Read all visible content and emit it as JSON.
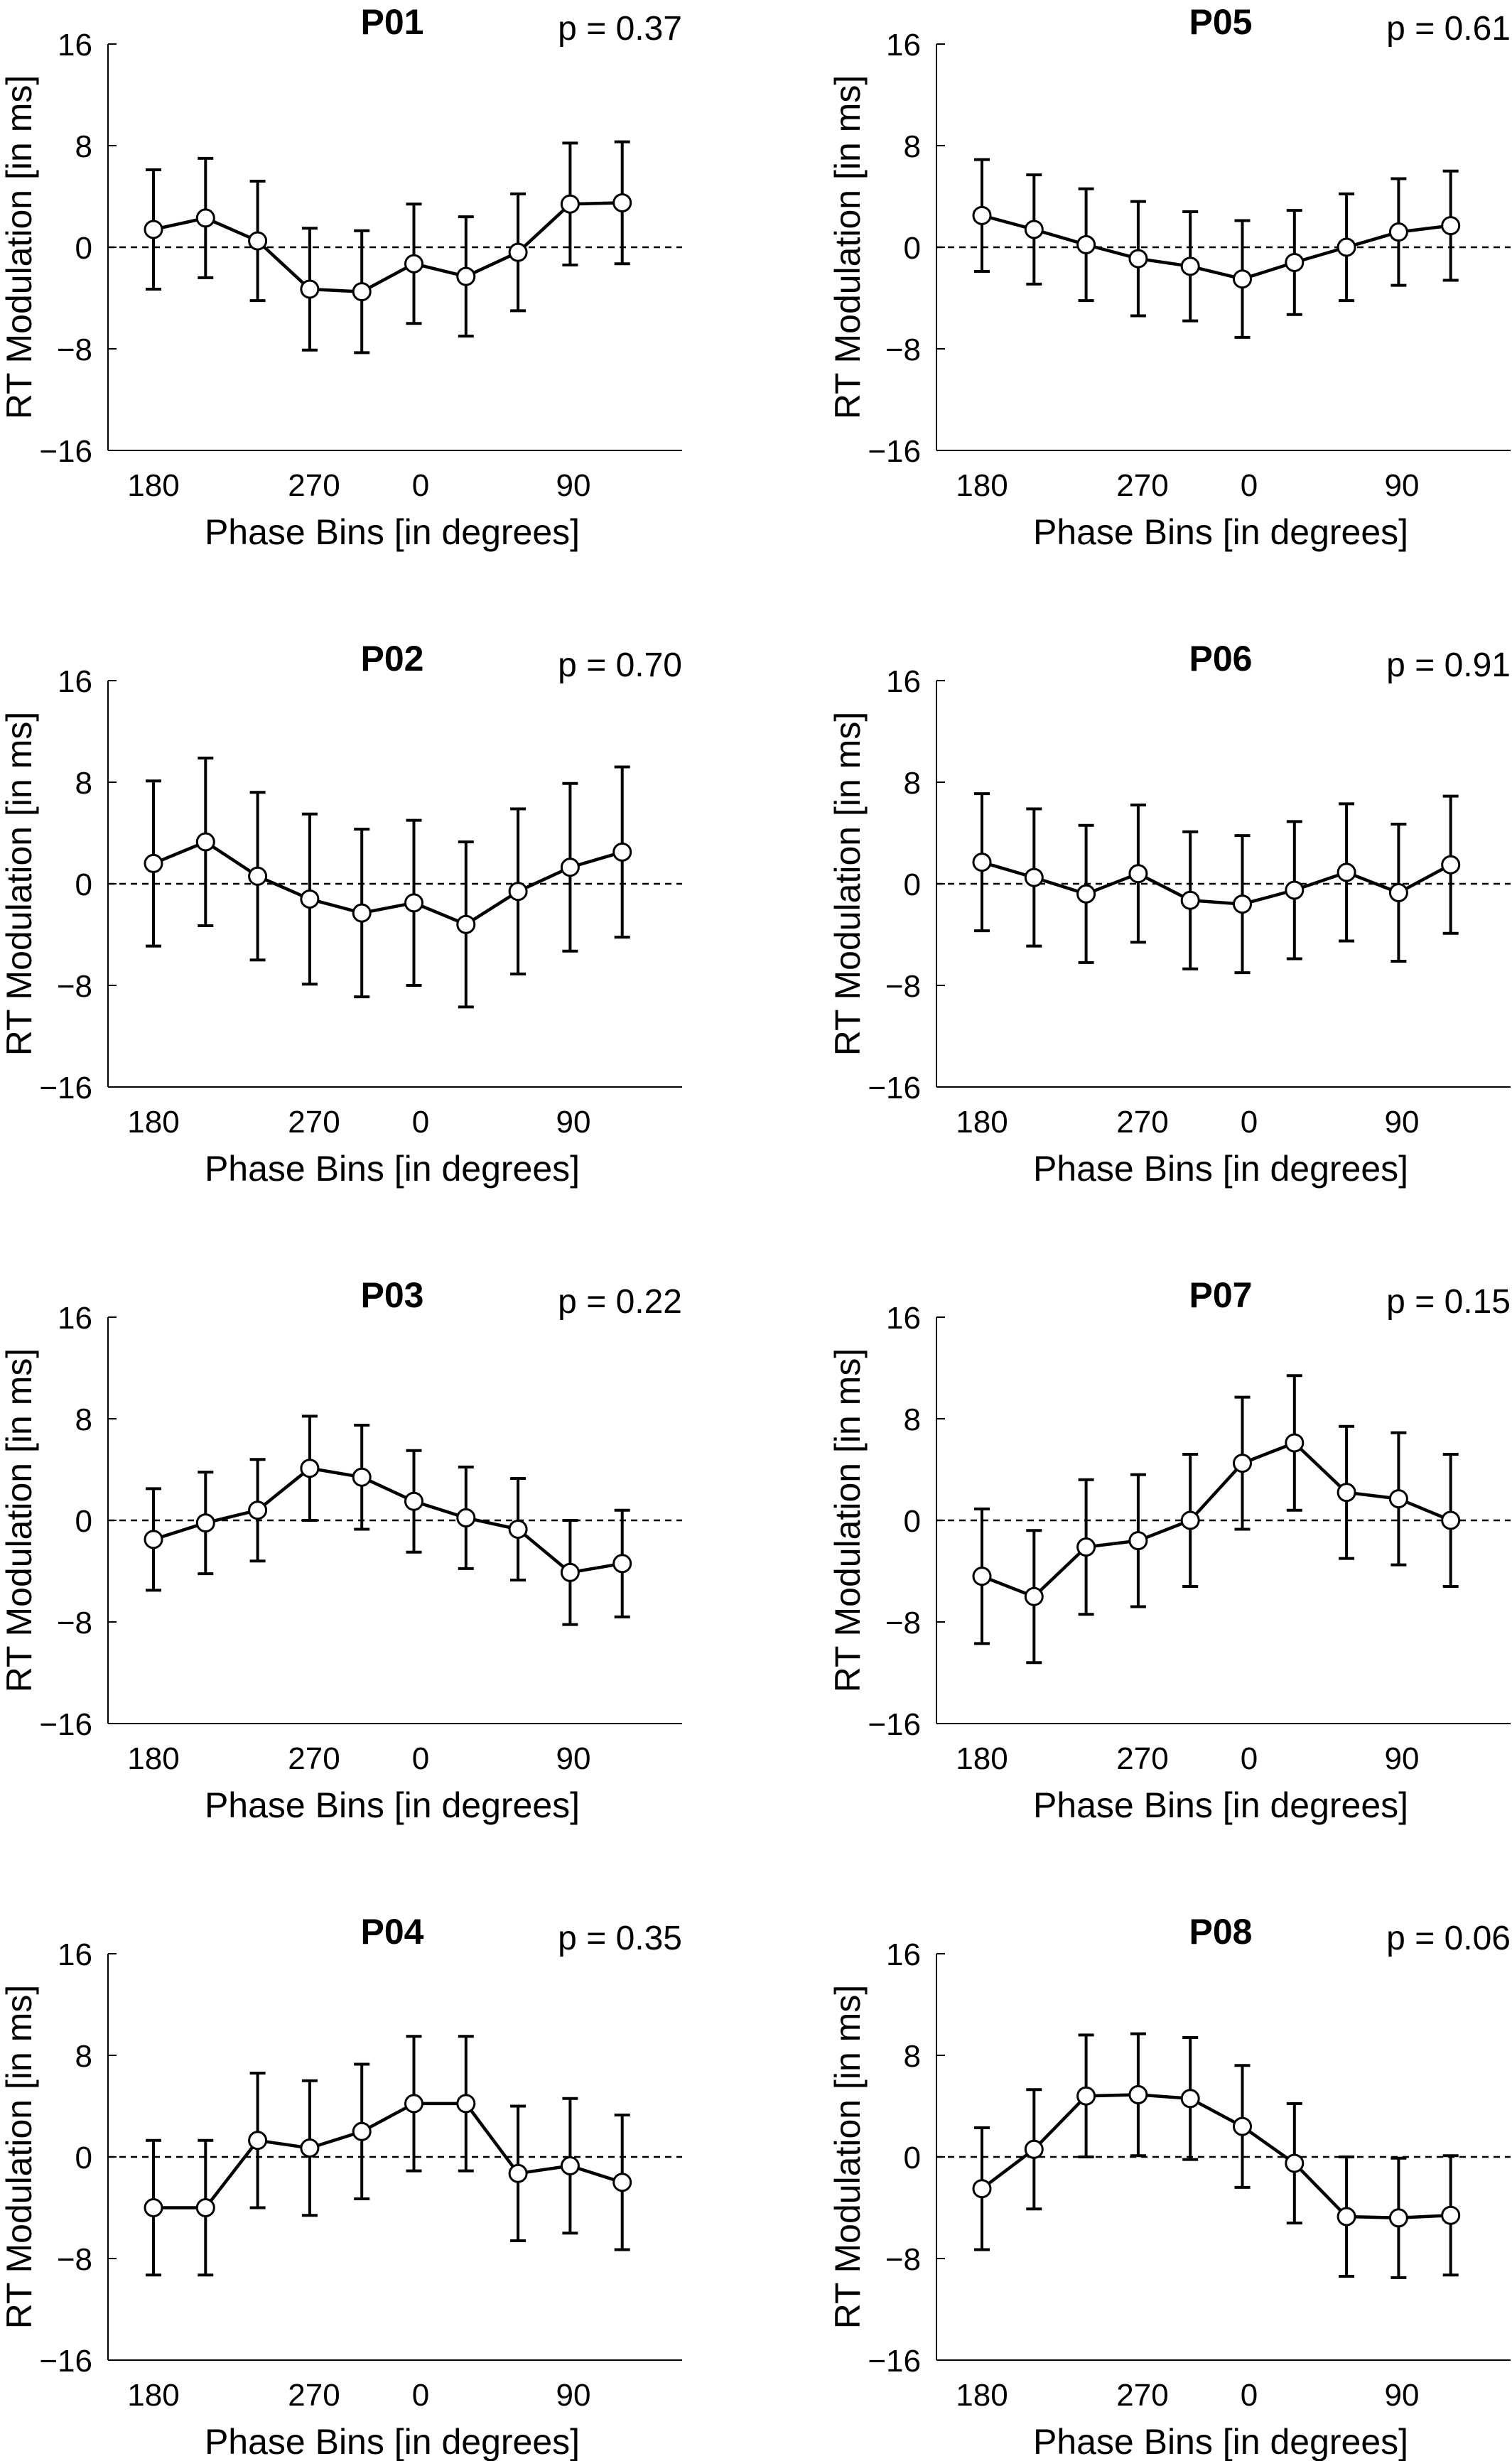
{
  "chart_data": [
    {
      "type": "line",
      "title": "P01",
      "annotation": "p = 0.37",
      "xlabel": "Phase Bins [in degrees]",
      "ylabel": "RT Modulation [in ms]",
      "ylim": [
        -16,
        16
      ],
      "yticks": [
        "16",
        "8",
        "0",
        "−8",
        "−16"
      ],
      "xticks": [
        "180",
        "270",
        "0",
        "90"
      ],
      "values": [
        1.4,
        2.3,
        0.5,
        -3.3,
        -3.5,
        -1.3,
        -2.3,
        -0.4,
        3.4,
        3.5
      ],
      "errors": [
        4.7,
        4.7,
        4.7,
        4.8,
        4.8,
        4.7,
        4.7,
        4.6,
        4.8,
        4.8
      ],
      "grid": false,
      "reference_line": 0
    },
    {
      "type": "line",
      "title": "P05",
      "annotation": "p = 0.61",
      "xlabel": "Phase Bins [in degrees]",
      "ylabel": "RT Modulation [in ms]",
      "ylim": [
        -16,
        16
      ],
      "yticks": [
        "16",
        "8",
        "0",
        "−8",
        "−16"
      ],
      "xticks": [
        "180",
        "270",
        "0",
        "90"
      ],
      "values": [
        2.5,
        1.4,
        0.2,
        -0.9,
        -1.5,
        -2.5,
        -1.2,
        0.0,
        1.2,
        1.7
      ],
      "errors": [
        4.4,
        4.3,
        4.4,
        4.5,
        4.3,
        4.6,
        4.1,
        4.2,
        4.2,
        4.3
      ],
      "grid": false,
      "reference_line": 0
    },
    {
      "type": "line",
      "title": "P02",
      "annotation": "p = 0.70",
      "xlabel": "Phase Bins [in degrees]",
      "ylabel": "RT Modulation [in ms]",
      "ylim": [
        -16,
        16
      ],
      "yticks": [
        "16",
        "8",
        "0",
        "−8",
        "−16"
      ],
      "xticks": [
        "180",
        "270",
        "0",
        "90"
      ],
      "values": [
        1.6,
        3.3,
        0.6,
        -1.2,
        -2.3,
        -1.5,
        -3.2,
        -0.6,
        1.3,
        2.5
      ],
      "errors": [
        6.5,
        6.6,
        6.6,
        6.7,
        6.6,
        6.5,
        6.5,
        6.5,
        6.6,
        6.7
      ],
      "grid": false,
      "reference_line": 0
    },
    {
      "type": "line",
      "title": "P06",
      "annotation": "p = 0.91",
      "xlabel": "Phase Bins [in degrees]",
      "ylabel": "RT Modulation [in ms]",
      "ylim": [
        -16,
        16
      ],
      "yticks": [
        "16",
        "8",
        "0",
        "−8",
        "−16"
      ],
      "xticks": [
        "180",
        "270",
        "0",
        "90"
      ],
      "values": [
        1.7,
        0.5,
        -0.8,
        0.8,
        -1.3,
        -1.6,
        -0.5,
        0.9,
        -0.7,
        1.5
      ],
      "errors": [
        5.4,
        5.4,
        5.4,
        5.4,
        5.4,
        5.4,
        5.4,
        5.4,
        5.4,
        5.4
      ],
      "grid": false,
      "reference_line": 0
    },
    {
      "type": "line",
      "title": "P03",
      "annotation": "p = 0.22",
      "xlabel": "Phase Bins [in degrees]",
      "ylabel": "RT Modulation [in ms]",
      "ylim": [
        -16,
        16
      ],
      "yticks": [
        "16",
        "8",
        "0",
        "−8",
        "−16"
      ],
      "xticks": [
        "180",
        "270",
        "0",
        "90"
      ],
      "values": [
        -1.5,
        -0.2,
        0.8,
        4.1,
        3.4,
        1.5,
        0.2,
        -0.7,
        -4.1,
        -3.4
      ],
      "errors": [
        4.0,
        4.0,
        4.0,
        4.1,
        4.1,
        4.0,
        4.0,
        4.0,
        4.1,
        4.2
      ],
      "grid": false,
      "reference_line": 0
    },
    {
      "type": "line",
      "title": "P07",
      "annotation": "p = 0.15",
      "xlabel": "Phase Bins [in degrees]",
      "ylabel": "RT Modulation [in ms]",
      "ylim": [
        -16,
        16
      ],
      "yticks": [
        "16",
        "8",
        "0",
        "−8",
        "−16"
      ],
      "xticks": [
        "180",
        "270",
        "0",
        "90"
      ],
      "values": [
        -4.4,
        -6.0,
        -2.1,
        -1.6,
        0.0,
        4.5,
        6.1,
        2.2,
        1.7,
        0.0
      ],
      "errors": [
        5.3,
        5.2,
        5.3,
        5.2,
        5.2,
        5.2,
        5.3,
        5.2,
        5.2,
        5.2
      ],
      "grid": false,
      "reference_line": 0
    },
    {
      "type": "line",
      "title": "P04",
      "annotation": "p = 0.35",
      "xlabel": "Phase Bins [in degrees]",
      "ylabel": "RT Modulation [in ms]",
      "ylim": [
        -16,
        16
      ],
      "yticks": [
        "16",
        "8",
        "0",
        "−8",
        "−16"
      ],
      "xticks": [
        "180",
        "270",
        "0",
        "90"
      ],
      "values": [
        -4.0,
        -4.0,
        1.3,
        0.7,
        2.0,
        4.2,
        4.2,
        -1.3,
        -0.7,
        -2.0
      ],
      "errors": [
        5.3,
        5.3,
        5.3,
        5.3,
        5.3,
        5.3,
        5.3,
        5.3,
        5.3,
        5.3
      ],
      "grid": false,
      "reference_line": 0
    },
    {
      "type": "line",
      "title": "P08",
      "annotation": "p = 0.06",
      "xlabel": "Phase Bins [in degrees]",
      "ylabel": "RT Modulation [in ms]",
      "ylim": [
        -16,
        16
      ],
      "yticks": [
        "16",
        "8",
        "0",
        "−8",
        "−16"
      ],
      "xticks": [
        "180",
        "270",
        "0",
        "90"
      ],
      "values": [
        -2.5,
        0.6,
        4.8,
        4.9,
        4.6,
        2.4,
        -0.5,
        -4.7,
        -4.8,
        -4.6
      ],
      "errors": [
        4.8,
        4.7,
        4.8,
        4.8,
        4.8,
        4.8,
        4.7,
        4.7,
        4.7,
        4.7
      ],
      "grid": false,
      "reference_line": 0
    }
  ]
}
